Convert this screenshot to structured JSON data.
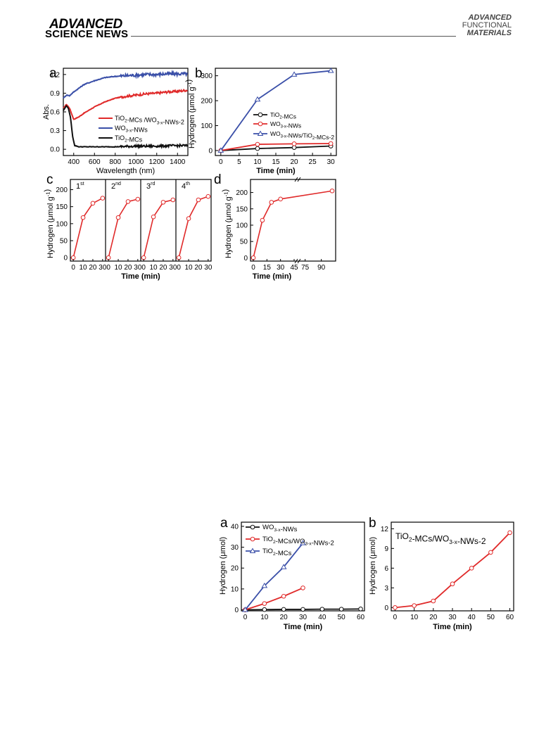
{
  "header": {
    "left_line1": "ADVANCED",
    "left_line2": "SCIENCE NEWS",
    "right_line1": "ADVANCED",
    "right_line2": "FUNCTIONAL",
    "right_line3": "MATERIALS"
  },
  "colors": {
    "black": "#111111",
    "red": "#e02a2a",
    "blue": "#3a4fa8"
  },
  "chart_data": [
    {
      "panel": "a",
      "type": "line",
      "xlabel": "Wavelength (nm)",
      "ylabel": "Abs.",
      "xlim": [
        300,
        1500
      ],
      "ylim": [
        -0.1,
        1.3
      ],
      "xticks": [
        "400",
        "600",
        "800",
        "1000",
        "1200",
        "1400"
      ],
      "yticks": [
        "0.0",
        "0.3",
        "0.6",
        "0.9",
        "1.2"
      ],
      "legend": [
        "TiO2-MCs /WO3-x-NWs-2",
        "WO3-x-NWs",
        "TiO2-MCs"
      ],
      "series": [
        {
          "name": "TiO2-MCs /WO3-x-NWs-2",
          "color": "red",
          "x": [
            300,
            330,
            360,
            400,
            450,
            500,
            600,
            700,
            800,
            900,
            1000,
            1100,
            1200,
            1300,
            1400,
            1500
          ],
          "y": [
            0.66,
            0.72,
            0.66,
            0.48,
            0.52,
            0.58,
            0.68,
            0.76,
            0.82,
            0.85,
            0.87,
            0.89,
            0.9,
            0.92,
            0.93,
            0.95
          ]
        },
        {
          "name": "WO3-x-NWs",
          "color": "blue",
          "x": [
            300,
            330,
            360,
            400,
            450,
            500,
            600,
            700,
            800,
            900,
            1000,
            1100,
            1200,
            1300,
            1400,
            1500
          ],
          "y": [
            0.82,
            0.87,
            0.86,
            0.92,
            0.98,
            1.04,
            1.1,
            1.15,
            1.17,
            1.18,
            1.19,
            1.2,
            1.2,
            1.21,
            1.21,
            1.21
          ]
        },
        {
          "name": "TiO2-MCs",
          "color": "black",
          "x": [
            300,
            330,
            350,
            370,
            390,
            410,
            450,
            600,
            800,
            1000,
            1200,
            1400,
            1500
          ],
          "y": [
            0.62,
            0.7,
            0.65,
            0.5,
            0.2,
            0.06,
            0.04,
            0.04,
            0.04,
            0.05,
            0.05,
            0.06,
            0.06
          ]
        }
      ]
    },
    {
      "panel": "b",
      "type": "line",
      "xlabel": "Time (min)",
      "ylabel": "Hydrogen (μmol g⁻¹)",
      "xlim": [
        0,
        30
      ],
      "ylim": [
        -20,
        330
      ],
      "xticks": [
        "0",
        "5",
        "10",
        "15",
        "20",
        "25",
        "30"
      ],
      "yticks": [
        "0",
        "100",
        "200",
        "300"
      ],
      "legend": [
        "TiO2-MCs",
        "WO3-x-NWs",
        "WO3-x-NWs/TiO2-MCs-2"
      ],
      "series": [
        {
          "name": "TiO2-MCs",
          "color": "black",
          "x": [
            0,
            10,
            20,
            30
          ],
          "y": [
            0,
            8,
            12,
            18
          ]
        },
        {
          "name": "WO3-x-NWs",
          "color": "red",
          "x": [
            0,
            10,
            20,
            30
          ],
          "y": [
            0,
            25,
            27,
            28
          ]
        },
        {
          "name": "WO3-x-NWs/TiO2-MCs-2",
          "color": "blue",
          "x": [
            0,
            10,
            20,
            30
          ],
          "y": [
            0,
            205,
            305,
            320
          ]
        }
      ]
    },
    {
      "panel": "c",
      "type": "line",
      "xlabel": "Time (min)",
      "ylabel": "Hydrogen (μmol g⁻¹)",
      "ylim": [
        -10,
        230
      ],
      "yticks": [
        "0",
        "50",
        "100",
        "150",
        "200"
      ],
      "xticks": [
        "0",
        "10",
        "20",
        "30"
      ],
      "cycles": [
        "1st",
        "2nd",
        "3rd",
        "4th"
      ],
      "series": [
        {
          "name": "1st",
          "x": [
            0,
            10,
            20,
            30
          ],
          "y": [
            0,
            118,
            160,
            175
          ]
        },
        {
          "name": "2nd",
          "x": [
            0,
            10,
            20,
            30
          ],
          "y": [
            0,
            118,
            165,
            172
          ]
        },
        {
          "name": "3rd",
          "x": [
            0,
            10,
            20,
            30
          ],
          "y": [
            0,
            120,
            163,
            170
          ]
        },
        {
          "name": "4th",
          "x": [
            0,
            10,
            20,
            30
          ],
          "y": [
            0,
            115,
            170,
            180
          ]
        }
      ]
    },
    {
      "panel": "d",
      "type": "line",
      "xlabel": "Time (min)",
      "ylabel": "Hydrogen (μmol g⁻¹)",
      "ylim": [
        -10,
        240
      ],
      "yticks": [
        "0",
        "50",
        "100",
        "150",
        "200"
      ],
      "xticks": [
        "0",
        "15",
        "30",
        "45",
        "75",
        "90"
      ],
      "series": [
        {
          "name": "",
          "x": [
            0,
            10,
            20,
            30,
            100
          ],
          "y": [
            0,
            115,
            170,
            180,
            205
          ]
        }
      ]
    },
    {
      "panel": "a",
      "type": "line",
      "xlabel": "Time (min)",
      "ylabel": "Hydrogen (μmol)",
      "xlim": [
        0,
        60
      ],
      "ylim": [
        0,
        42
      ],
      "xticks": [
        "0",
        "10",
        "20",
        "30",
        "40",
        "50",
        "60"
      ],
      "yticks": [
        "0",
        "10",
        "20",
        "30",
        "40"
      ],
      "legend": [
        "WO3-x-NWs",
        "TiO2-MCs/WO3-x-NWs-2",
        "TiO2-MCs"
      ],
      "series": [
        {
          "name": "WO3-x-NWs",
          "color": "black",
          "x": [
            0,
            10,
            20,
            30,
            40,
            50,
            60
          ],
          "y": [
            0,
            0.1,
            0.2,
            0.2,
            0.3,
            0.3,
            0.4
          ]
        },
        {
          "name": "TiO2-MCs/WO3-x-NWs-2",
          "color": "red",
          "x": [
            0,
            10,
            20,
            30
          ],
          "y": [
            0,
            3,
            6.5,
            10.5
          ]
        },
        {
          "name": "TiO2-MCs",
          "color": "blue",
          "x": [
            0,
            10,
            20,
            30
          ],
          "y": [
            0,
            11.5,
            20.5,
            32
          ]
        }
      ]
    },
    {
      "panel": "b",
      "type": "line",
      "title": "TiO2-MCs/WO3-x-NWs-2",
      "xlabel": "Time (min)",
      "ylabel": "Hydrogen (μmol)",
      "xlim": [
        0,
        60
      ],
      "ylim": [
        -0.5,
        13
      ],
      "xticks": [
        "0",
        "10",
        "20",
        "30",
        "40",
        "50",
        "60"
      ],
      "yticks": [
        "0",
        "3",
        "6",
        "9",
        "12"
      ],
      "series": [
        {
          "name": "TiO2-MCs/WO3-x-NWs-2",
          "color": "red",
          "x": [
            0,
            10,
            20,
            30,
            40,
            50,
            60
          ],
          "y": [
            0,
            0.3,
            1,
            3.6,
            6,
            8.4,
            11.4
          ]
        }
      ]
    }
  ]
}
